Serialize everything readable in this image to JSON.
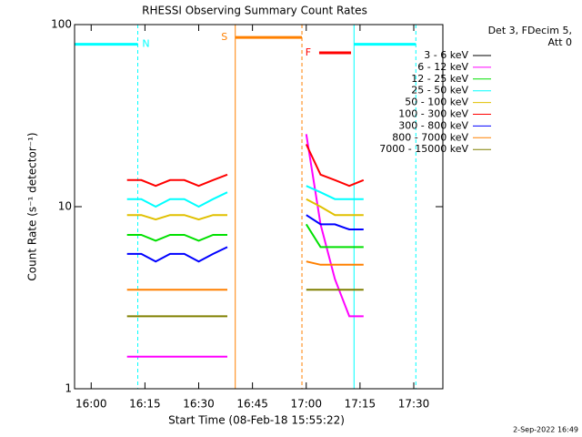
{
  "chart_data": {
    "type": "line",
    "title": "RHESSI Observing Summary Count Rates",
    "xlabel": "Start Time (08-Feb-18 15:55:22)",
    "ylabel": "Count Rate (s⁻¹ detector⁻¹)",
    "legend_title": [
      "Det 3, FDecim 5,",
      "Att 0"
    ],
    "footer": "2-Sep-2022 16:49",
    "log_y": true,
    "legend": "outside-right",
    "xlim": [
      "15:55:22",
      "17:38:07"
    ],
    "xticks": [
      "16:00",
      "16:15",
      "16:30",
      "16:45",
      "17:00",
      "17:15",
      "17:30"
    ],
    "ylim": [
      1,
      100
    ],
    "yticks": [
      1,
      10,
      100
    ],
    "x": [
      "16:10",
      "16:14",
      "16:18",
      "16:22",
      "16:26",
      "16:30",
      "16:34",
      "16:38",
      "16:49",
      "17:00",
      "17:04",
      "17:08",
      "17:12",
      "17:16"
    ],
    "series": [
      {
        "name": "3 - 6 keV",
        "color": "#000000",
        "values": [
          null,
          null,
          null,
          null,
          null,
          null,
          null,
          null,
          null,
          null,
          null,
          null,
          null,
          null
        ]
      },
      {
        "name": "6 - 12 keV",
        "color": "#ff00ff",
        "values": [
          1.5,
          1.5,
          1.5,
          1.5,
          1.5,
          1.5,
          1.5,
          1.5,
          null,
          25,
          8,
          4,
          2.5,
          2.5
        ]
      },
      {
        "name": "12 - 25 keV",
        "color": "#00e000",
        "values": [
          7,
          7,
          6.5,
          7,
          7,
          6.5,
          7,
          7,
          null,
          8,
          6,
          6,
          6,
          6
        ]
      },
      {
        "name": "25 - 50 keV",
        "color": "#00ffff",
        "values": [
          11,
          11,
          10,
          11,
          11,
          10,
          11,
          12,
          null,
          13,
          12,
          11,
          11,
          11
        ]
      },
      {
        "name": "50 - 100 keV",
        "color": "#e0c000",
        "values": [
          9,
          9,
          8.5,
          9,
          9,
          8.5,
          9,
          9,
          null,
          11,
          10,
          9,
          9,
          9
        ]
      },
      {
        "name": "100 - 300 keV",
        "color": "#ff0000",
        "values": [
          14,
          14,
          13,
          14,
          14,
          13,
          14,
          15,
          null,
          22,
          15,
          14,
          13,
          14
        ]
      },
      {
        "name": "300 - 800 keV",
        "color": "#0000ff",
        "values": [
          5.5,
          5.5,
          5,
          5.5,
          5.5,
          5,
          5.5,
          6,
          null,
          9,
          8,
          8,
          7.5,
          7.5
        ]
      },
      {
        "name": "800 - 7000 keV",
        "color": "#ff8000",
        "values": [
          3.5,
          3.5,
          3.5,
          3.5,
          3.5,
          3.5,
          3.5,
          3.5,
          null,
          5,
          4.8,
          4.8,
          4.8,
          4.8
        ]
      },
      {
        "name": "7000 - 15000 keV",
        "color": "#808000",
        "values": [
          2.5,
          2.5,
          2.5,
          2.5,
          2.5,
          2.5,
          2.5,
          2.5,
          null,
          3.5,
          3.5,
          3.5,
          3.5,
          3.5
        ]
      }
    ],
    "annotations": [
      {
        "label": "N",
        "label_side": "end",
        "start": "15:55:22",
        "end": "16:13:00",
        "level": 78,
        "color": "#00ffff",
        "boundaries": true
      },
      {
        "start": "17:13:20",
        "end": "17:30:35",
        "level": 78,
        "color": "#00ffff",
        "boundaries": true
      },
      {
        "label": "S",
        "label_side": "start",
        "start": "16:40:12",
        "end": "16:58:48",
        "level": 85,
        "color": "#ff8000",
        "boundaries": true
      },
      {
        "label": "F",
        "label_side": "start",
        "start": "17:03:36",
        "end": "17:12:30",
        "level": 70,
        "color": "#ff0000",
        "boundaries": false
      }
    ]
  }
}
